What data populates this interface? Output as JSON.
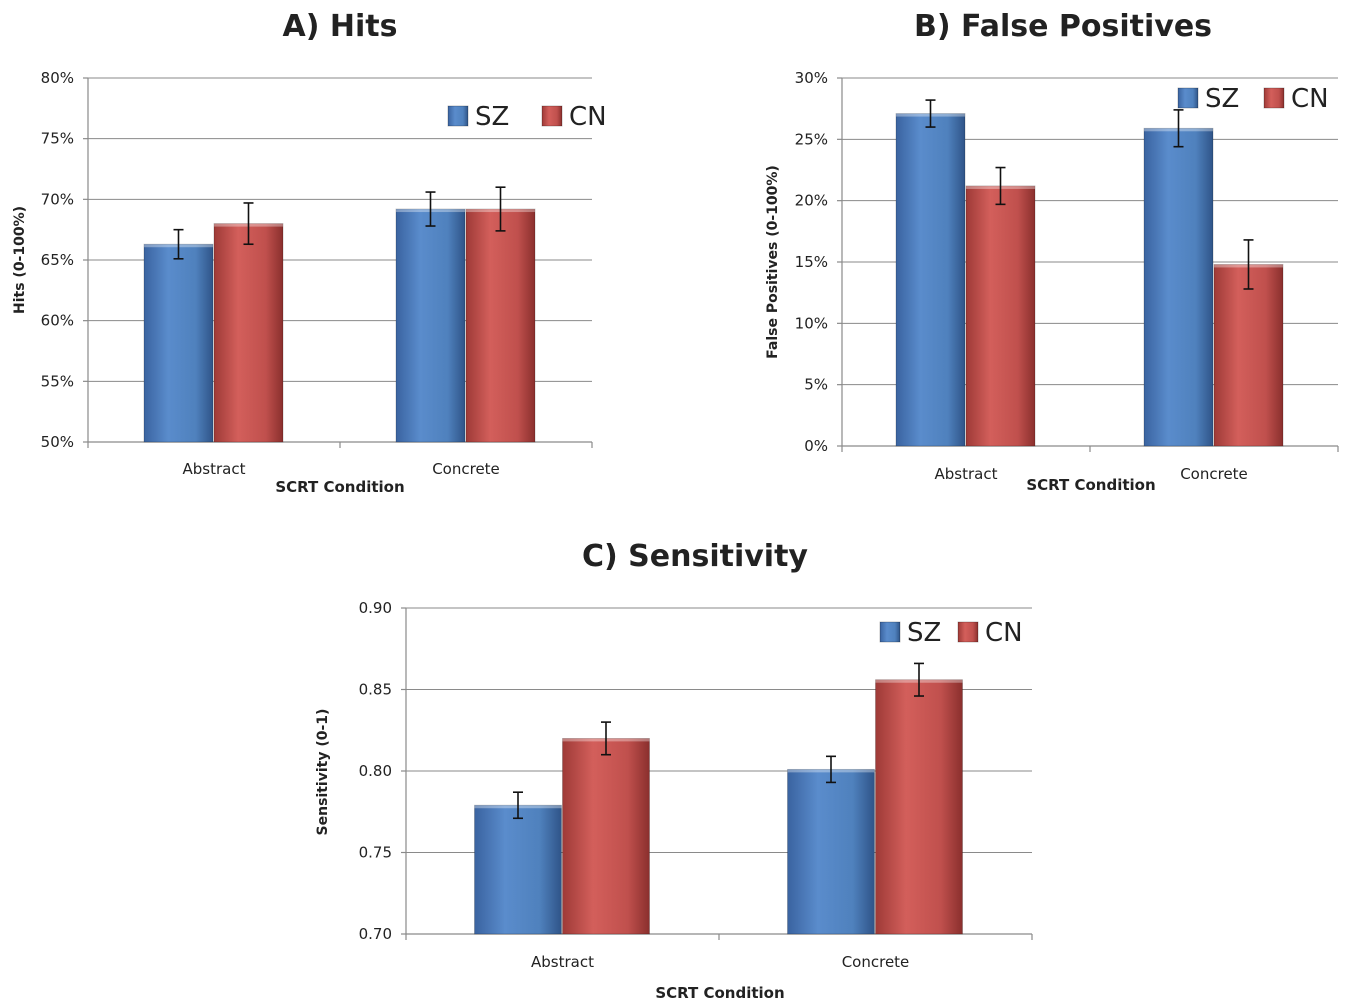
{
  "colors": {
    "SZ": "#4f81bd",
    "CN": "#c0504d"
  },
  "chart_data": [
    {
      "type": "bar",
      "title": "A) Hits",
      "xlabel": "SCRT Condition",
      "ylabel": "Hits (0-100%)",
      "categories": [
        "Abstract",
        "Concrete"
      ],
      "ylim": [
        50,
        80
      ],
      "yticks": [
        "50%",
        "55%",
        "60%",
        "65%",
        "70%",
        "75%",
        "80%"
      ],
      "legend": "top-right",
      "series": [
        {
          "name": "SZ",
          "values": [
            66.3,
            69.2
          ],
          "errors": [
            1.2,
            1.4
          ]
        },
        {
          "name": "CN",
          "values": [
            68.0,
            69.2
          ],
          "errors": [
            1.7,
            1.8
          ]
        }
      ]
    },
    {
      "type": "bar",
      "title": "B) False Positives",
      "xlabel": "SCRT Condition",
      "ylabel": "False Positives (0-100%)",
      "categories": [
        "Abstract",
        "Concrete"
      ],
      "ylim": [
        0,
        30
      ],
      "yticks": [
        "0%",
        "5%",
        "10%",
        "15%",
        "20%",
        "25%",
        "30%"
      ],
      "legend": "top-right",
      "series": [
        {
          "name": "SZ",
          "values": [
            27.1,
            25.9
          ],
          "errors": [
            1.1,
            1.5
          ]
        },
        {
          "name": "CN",
          "values": [
            21.2,
            14.8
          ],
          "errors": [
            1.5,
            2.0
          ]
        }
      ]
    },
    {
      "type": "bar",
      "title": "C) Sensitivity",
      "xlabel": "SCRT Condition",
      "ylabel": "Sensitivity (0-1)",
      "categories": [
        "Abstract",
        "Concrete"
      ],
      "ylim": [
        0.7,
        0.9
      ],
      "yticks": [
        "0.70",
        "0.75",
        "0.80",
        "0.85",
        "0.90"
      ],
      "legend": "top-right",
      "series": [
        {
          "name": "SZ",
          "values": [
            0.779,
            0.801
          ],
          "errors": [
            0.008,
            0.008
          ]
        },
        {
          "name": "CN",
          "values": [
            0.82,
            0.856
          ],
          "errors": [
            0.01,
            0.01
          ]
        }
      ]
    }
  ]
}
